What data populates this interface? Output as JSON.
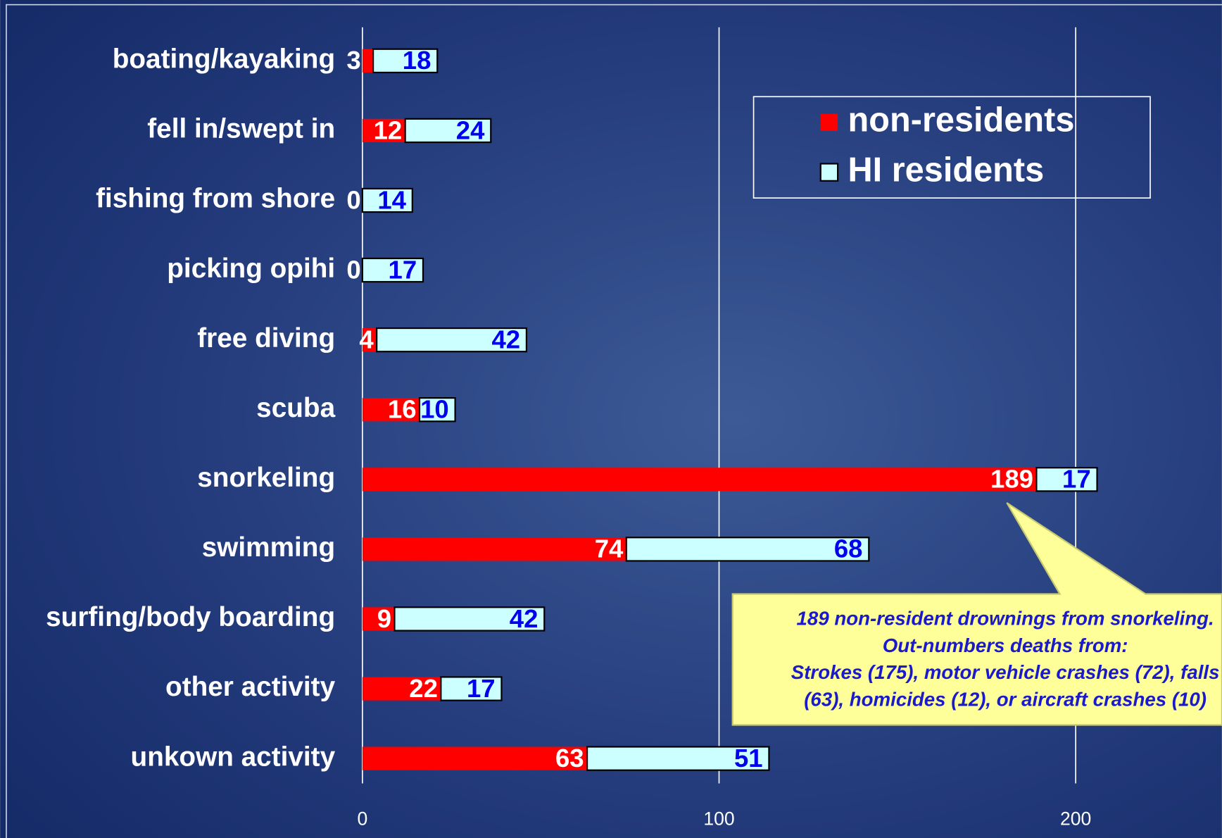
{
  "chart_data": {
    "type": "stacked-barh",
    "categories": [
      "boating/kayaking",
      "fell in/swept in",
      "fishing from shore",
      "picking opihi",
      "free diving",
      "scuba",
      "snorkeling",
      "swimming",
      "surfing/body boarding",
      "other activity",
      "unkown activity"
    ],
    "series": [
      {
        "name": "non-residents",
        "color": "#ff0000",
        "values": [
          3,
          12,
          0,
          0,
          4,
          16,
          189,
          74,
          9,
          22,
          63
        ]
      },
      {
        "name": "HI residents",
        "color": "#ccffff",
        "values": [
          18,
          24,
          14,
          17,
          42,
          10,
          17,
          68,
          42,
          17,
          51
        ]
      }
    ],
    "xlim": [
      0,
      241
    ],
    "xticks": [
      0,
      100,
      200
    ],
    "grid": true,
    "legend": "upper right",
    "annotation": [
      "189 non-resident drownings from snorkeling.",
      "Out-numbers deaths from:",
      "Strokes (175), motor vehicle crashes (72), falls",
      "(63), homicides (12), or aircraft crashes (10)"
    ]
  }
}
